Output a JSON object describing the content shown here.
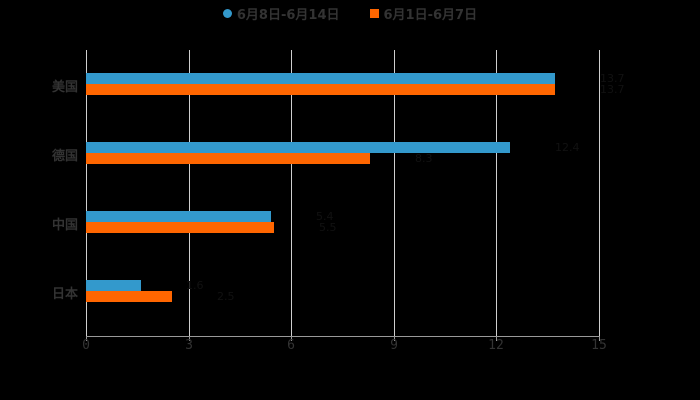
{
  "chart_data": {
    "type": "bar",
    "orientation": "horizontal",
    "title": "",
    "xlabel": "",
    "ylabel": "",
    "categories": [
      "美国",
      "德国",
      "中国",
      "日本"
    ],
    "series": [
      {
        "name": "6月8日-6月14日",
        "color": "#3399CC",
        "values": [
          13.7,
          12.4,
          5.4,
          1.6
        ]
      },
      {
        "name": "6月1日-6月7日",
        "color": "#FF6600",
        "values": [
          13.7,
          8.3,
          5.5,
          2.5
        ]
      }
    ],
    "xlim": [
      0,
      15
    ],
    "xticks": [
      "0",
      "3",
      "6",
      "9",
      "12",
      "15"
    ],
    "grid": true,
    "legend_position": "top"
  },
  "legend": [
    {
      "label": "6月8日-6月14日",
      "color": "#3399CC"
    },
    {
      "label": "6月1日-6月7日",
      "color": "#FF6600"
    }
  ]
}
